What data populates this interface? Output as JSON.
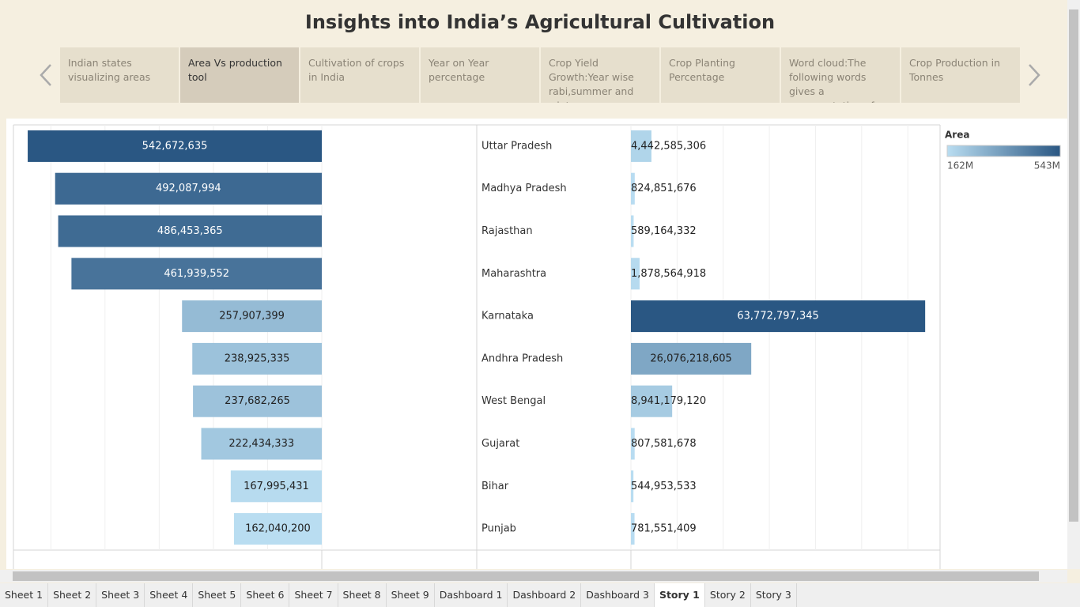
{
  "title": "Insights into India’s Agricultural Cultivation",
  "story_points": [
    "Indian states visualizing areas",
    "Area Vs production tool",
    "Cultivation of crops in India",
    "Year on Year percentage",
    "Crop Yield Growth:Year wise rabi,summer and winter",
    "Crop Planting Percentage",
    "Word cloud:The following words gives a representation of",
    "Crop Production in Tonnes"
  ],
  "selected_story_point": 1,
  "chart_data": [
    {
      "type": "bar",
      "orientation": "horizontal",
      "reversed": true,
      "grid": true,
      "categories": [
        "Uttar Pradesh",
        "Madhya Pradesh",
        "Rajasthan",
        "Maharashtra",
        "Karnataka",
        "Andhra Pradesh",
        "West Bengal",
        "Gujarat",
        "Bihar",
        "Punjab"
      ],
      "values": [
        542672635,
        492087994,
        486453365,
        461939552,
        257907399,
        238925335,
        237682265,
        222434333,
        167995431,
        162040200
      ],
      "value_labels": [
        "542,672,635",
        "492,087,994",
        "486,453,365",
        "461,939,552",
        "257,907,399",
        "238,925,335",
        "237,682,265",
        "222,434,333",
        "167,995,431",
        "162,040,200"
      ],
      "xlim": [
        0,
        569000000
      ],
      "xticks": [
        0,
        100000000,
        200000000,
        300000000,
        400000000,
        500000000
      ],
      "color_range": [
        "#b9ddf1",
        "#2a5783"
      ],
      "legend": {
        "title": "Area",
        "ticks": [
          {
            "value": 162040200,
            "label": "162M"
          },
          {
            "value": 542672635,
            "label": "543M"
          }
        ]
      }
    },
    {
      "type": "bar",
      "orientation": "horizontal",
      "reversed": false,
      "grid": true,
      "values": [
        4442585306,
        824851676,
        589164332,
        1878564918,
        63772797345,
        26076218605,
        8941179120,
        807581678,
        544953533,
        781551409
      ],
      "value_labels": [
        "4,442,585,306",
        "824,851,676",
        "589,164,332",
        "1,878,564,918",
        "63,772,797,345",
        "26,076,218,605",
        "8,941,179,120",
        "807,581,678",
        "544,953,533",
        "781,551,409"
      ],
      "xlim": [
        0,
        67000000000
      ],
      "xticks": [
        0,
        10000000000,
        20000000000,
        30000000000,
        40000000000,
        50000000000,
        60000000000
      ],
      "color_range": [
        "#b9ddf1",
        "#2a5783"
      ]
    }
  ],
  "sheet_tabs": [
    "Sheet 1",
    "Sheet 2",
    "Sheet 3",
    "Sheet 4",
    "Sheet 5",
    "Sheet 6",
    "Sheet 7",
    "Sheet 8",
    "Sheet 9",
    "Dashboard 1",
    "Dashboard 2",
    "Dashboard 3",
    "Story 1",
    "Story 2",
    "Story 3"
  ],
  "active_tab": 12
}
